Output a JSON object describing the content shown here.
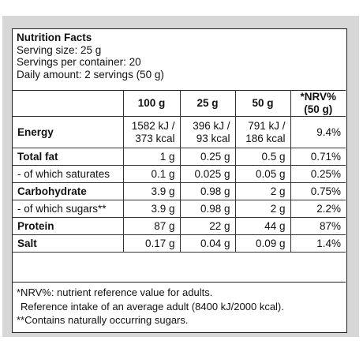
{
  "header": {
    "title": "Nutrition Facts",
    "serving_size": "Serving size: 25 g",
    "servings_per_container": "Servings per container: 20",
    "daily_amount": "Daily amount: 2 servings (50 g)"
  },
  "table": {
    "columns": [
      "",
      "100 g",
      "25 g",
      "50 g",
      "*NRV%\n(50 g)"
    ],
    "col_100g": "100 g",
    "col_25g": "25 g",
    "col_50g": "50 g",
    "col_nrv_line1": "*NRV%",
    "col_nrv_line2": "(50 g)",
    "rows": [
      {
        "name": "Energy",
        "v100_l1": "1582 kJ /",
        "v100_l2": "373 kcal",
        "v25_l1": "396 kJ /",
        "v25_l2": "93 kcal",
        "v50_l1": "791 kJ /",
        "v50_l2": "186 kcal",
        "nrv": "9.4%"
      },
      {
        "name": "Total fat",
        "v100": "1 g",
        "v25": "0.25 g",
        "v50": "0.5 g",
        "nrv": "0.71%"
      },
      {
        "name": "- of which saturates",
        "v100": "0.1 g",
        "v25": "0.025 g",
        "v50": "0.05 g",
        "nrv": "0.25%"
      },
      {
        "name": "Carbohydrate",
        "v100": "3.9 g",
        "v25": "0.98 g",
        "v50": "2 g",
        "nrv": "0.75%"
      },
      {
        "name": "- of which sugars**",
        "v100": "3.9 g",
        "v25": "0.98 g",
        "v50": "2 g",
        "nrv": "2.2%"
      },
      {
        "name": "Protein",
        "v100": "87 g",
        "v25": "22 g",
        "v50": "44 g",
        "nrv": "87%"
      },
      {
        "name": "Salt",
        "v100": "0.17 g",
        "v25": "0.04 g",
        "v50": "0.09 g",
        "nrv": "1.4%"
      }
    ]
  },
  "footnotes": {
    "nrv_note": "*NRV%: nutrient reference value for adults.",
    "reference_intake": "Reference intake of an average adult (8400 kJ/2000 kcal).",
    "sugars_note": "**Contains naturally occurring sugars."
  }
}
